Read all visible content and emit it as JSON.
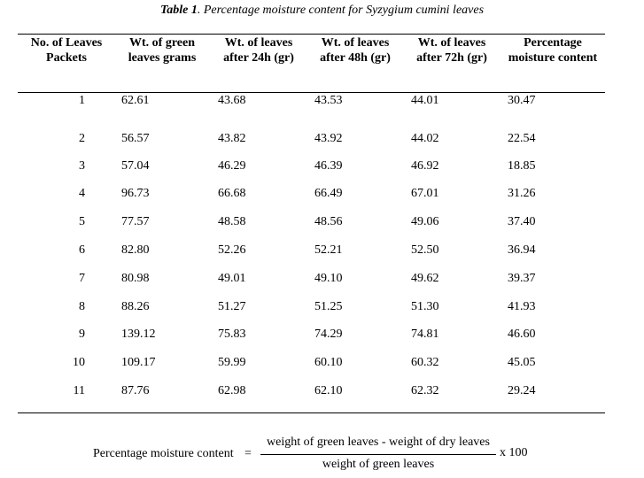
{
  "caption": {
    "label": "Table 1",
    "text": ". Percentage moisture content for Syzygium cumini leaves"
  },
  "headers": [
    "No. of Leaves\nPackets",
    "Wt. of green\nleaves grams",
    "Wt. of leaves\nafter 24h (gr)",
    "Wt. of leaves\nafter 48h (gr)",
    "Wt. of leaves\nafter 72h (gr)",
    "Percentage\nmoisture content"
  ],
  "rows": [
    [
      "1",
      "62.61",
      "43.68",
      "43.53",
      "44.01",
      "30.47"
    ],
    [
      "2",
      "56.57",
      "43.82",
      "43.92",
      "44.02",
      "22.54"
    ],
    [
      "3",
      "57.04",
      "46.29",
      "46.39",
      "46.92",
      "18.85"
    ],
    [
      "4",
      "96.73",
      "66.68",
      "66.49",
      "67.01",
      "31.26"
    ],
    [
      "5",
      "77.57",
      "48.58",
      "48.56",
      "49.06",
      "37.40"
    ],
    [
      "6",
      "82.80",
      "52.26",
      "52.21",
      "52.50",
      "36.94"
    ],
    [
      "7",
      "80.98",
      "49.01",
      "49.10",
      "49.62",
      "39.37"
    ],
    [
      "8",
      "88.26",
      "51.27",
      "51.25",
      "51.30",
      "41.93"
    ],
    [
      "9",
      "139.12",
      "75.83",
      "74.29",
      "74.81",
      "46.60"
    ],
    [
      "10",
      "109.17",
      "59.99",
      "60.10",
      "60.32",
      "45.05"
    ],
    [
      "11",
      "87.76",
      "62.98",
      "62.10",
      "62.32",
      "29.24"
    ]
  ],
  "formula": {
    "label": "Percentage moisture content",
    "equals": "=",
    "numerator": "weight of green leaves - weight of dry leaves",
    "denominator": "weight of green leaves",
    "multiplier": "x 100"
  }
}
